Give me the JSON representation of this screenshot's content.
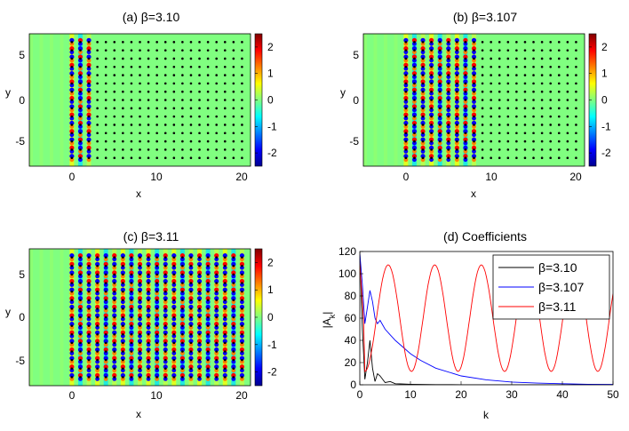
{
  "figure": {
    "beta_symbol": "β",
    "colormap": [
      "#00008f",
      "#0000ff",
      "#0080ff",
      "#00ffff",
      "#80ff80",
      "#ffff00",
      "#ff8000",
      "#ff0000",
      "#800000"
    ],
    "background_color": "#80ff80",
    "marker_color": "#000000"
  },
  "chart_data": [
    {
      "type": "heatmap",
      "title": "(a) β=3.10",
      "xlabel": "x",
      "ylabel": "y",
      "xlim": [
        -5,
        21
      ],
      "ylim": [
        -8,
        8
      ],
      "xticks": [
        0,
        10,
        20
      ],
      "yticks": [
        5,
        0,
        -5
      ],
      "colorbar": {
        "ticks": [
          2,
          1,
          0,
          -1,
          -2
        ],
        "range": [
          -2.5,
          2.5
        ]
      },
      "lattice": {
        "x_start": 0,
        "x_end": 20,
        "x_step": 1,
        "y_start": -7,
        "y_end": 7,
        "y_step": 1
      },
      "excitation_x": [
        0,
        1,
        2
      ]
    },
    {
      "type": "heatmap",
      "title": "(b) β=3.107",
      "xlabel": "x",
      "ylabel": "y",
      "xlim": [
        -5,
        21
      ],
      "ylim": [
        -8,
        8
      ],
      "xticks": [
        0,
        10,
        20
      ],
      "yticks": [
        5,
        0,
        -5
      ],
      "colorbar": {
        "ticks": [
          2,
          1,
          0,
          -1,
          -2
        ],
        "range": [
          -2.5,
          2.5
        ]
      },
      "lattice": {
        "x_start": 0,
        "x_end": 20,
        "x_step": 1,
        "y_start": -7,
        "y_end": 7,
        "y_step": 1
      },
      "excitation_x": [
        0,
        1,
        2,
        3,
        4,
        5,
        6,
        7,
        8
      ]
    },
    {
      "type": "heatmap",
      "title": "(c) β=3.11",
      "xlabel": "x",
      "ylabel": "y",
      "xlim": [
        -5,
        21
      ],
      "ylim": [
        -8,
        8
      ],
      "xticks": [
        0,
        10,
        20
      ],
      "yticks": [
        5,
        0,
        -5
      ],
      "colorbar": {
        "ticks": [
          2,
          1,
          0,
          -1,
          -2
        ],
        "range": [
          -2.5,
          2.5
        ]
      },
      "lattice": {
        "x_start": 0,
        "x_end": 20,
        "x_step": 1,
        "y_start": -7,
        "y_end": 7,
        "y_step": 1
      },
      "excitation_x": [
        0,
        1,
        2,
        3,
        4,
        5,
        6,
        7,
        8,
        9,
        10,
        11,
        12,
        13,
        14,
        15,
        16,
        17,
        18,
        19,
        20
      ]
    },
    {
      "type": "line",
      "title": "(d) Coefficients",
      "xlabel": "k",
      "ylabel": "|A_k|",
      "ylabel_main": "|A",
      "ylabel_sub": "k",
      "ylabel_end": "|",
      "xlim": [
        0,
        50
      ],
      "ylim": [
        0,
        120
      ],
      "xticks": [
        0,
        10,
        20,
        30,
        40,
        50
      ],
      "yticks": [
        0,
        20,
        40,
        60,
        80,
        100,
        120
      ],
      "legend_position": "top-right",
      "series": [
        {
          "name": "β=3.10",
          "color": "#000000",
          "x": [
            0,
            0.5,
            1,
            1.5,
            2,
            2.5,
            3,
            3.5,
            4,
            5,
            6,
            7,
            8,
            10,
            15,
            20,
            30,
            40,
            50
          ],
          "y": [
            120,
            50,
            5,
            20,
            40,
            15,
            3,
            10,
            8,
            2,
            3,
            1,
            0.8,
            0.5,
            0.2,
            0.1,
            0,
            0,
            0
          ]
        },
        {
          "name": "β=3.107",
          "color": "#0000ff",
          "x": [
            0,
            0.5,
            1,
            1.5,
            2,
            2.5,
            3,
            3.5,
            4,
            5,
            6,
            7,
            8,
            10,
            12,
            15,
            20,
            25,
            30,
            35,
            40,
            45,
            50
          ],
          "y": [
            118,
            90,
            55,
            70,
            85,
            75,
            60,
            55,
            58,
            50,
            45,
            40,
            36,
            28,
            22,
            15,
            8,
            4.5,
            2.5,
            1.5,
            1,
            0.5,
            0.3
          ]
        }
      ]
    }
  ]
}
